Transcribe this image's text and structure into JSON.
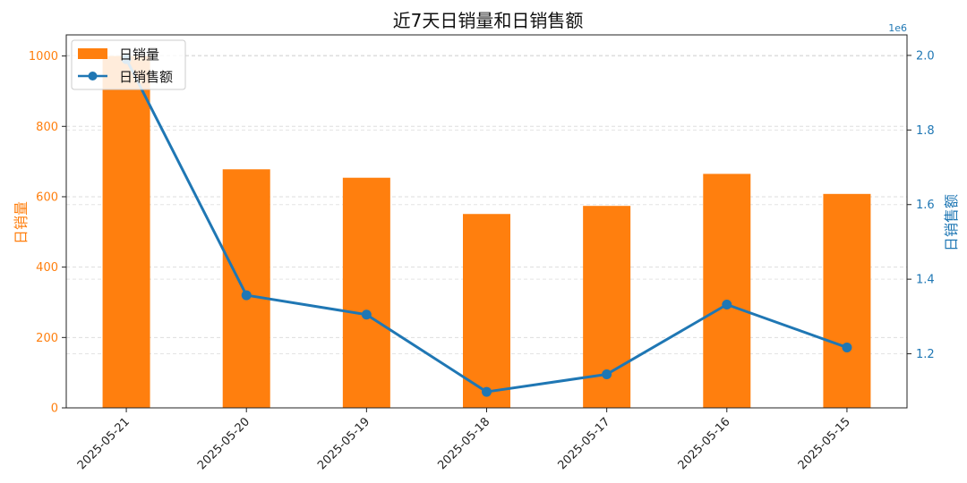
{
  "chart_data": {
    "type": "bar+line",
    "title": "近7天日销量和日销售额",
    "categories": [
      "2025-05-21",
      "2025-05-20",
      "2025-05-19",
      "2025-05-18",
      "2025-05-17",
      "2025-05-16",
      "2025-05-15"
    ],
    "series": [
      {
        "name": "日销量",
        "type": "bar",
        "axis": "left",
        "color": "#ff7f0e",
        "values": [
          1000,
          678,
          654,
          551,
          574,
          665,
          608
        ]
      },
      {
        "name": "日销售额",
        "type": "line",
        "axis": "right",
        "color": "#1f77b4",
        "values": [
          1990000,
          1357000,
          1305000,
          1098000,
          1145000,
          1332000,
          1217000
        ]
      }
    ],
    "left_axis": {
      "label": "日销量",
      "ylim": [
        0,
        1060
      ],
      "ticks": [
        "0",
        "200",
        "400",
        "600",
        "800",
        "1000"
      ],
      "tick_values": [
        0,
        200,
        400,
        600,
        800,
        1000
      ],
      "color": "#ff7f0e"
    },
    "right_axis": {
      "label": "日销售额",
      "ylim": [
        1055000,
        2055000
      ],
      "ticks": [
        "1.2",
        "1.4",
        "1.6",
        "1.8",
        "2.0"
      ],
      "tick_values": [
        1200000,
        1400000,
        1600000,
        1800000,
        2000000
      ],
      "offset_text": "1e6",
      "color": "#1f77b4"
    },
    "grid": "horizontal-dashed",
    "legend_placement": "top-left"
  }
}
